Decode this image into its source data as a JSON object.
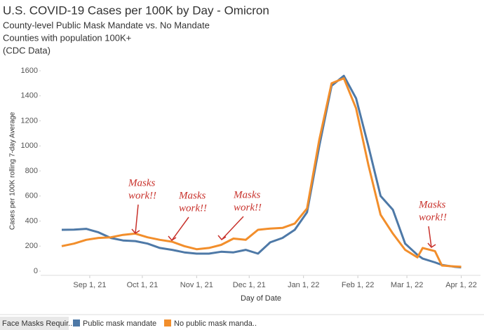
{
  "chart_data": {
    "type": "line",
    "title": "U.S. COVID-19 Cases per 100K by Day - Omicron",
    "subtitle": [
      "County-level Public Mask Mandate vs. No Mandate",
      "Counties with population 100K+",
      "(CDC Data)"
    ],
    "x_label": "Day of Date",
    "y_label": "Cases per 100K rolling 7-day Average",
    "x": [
      "2021-08-16",
      "2021-08-23",
      "2021-08-30",
      "2021-09-06",
      "2021-09-13",
      "2021-09-20",
      "2021-09-27",
      "2021-10-04",
      "2021-10-11",
      "2021-10-18",
      "2021-10-25",
      "2021-11-01",
      "2021-11-08",
      "2021-11-15",
      "2021-11-22",
      "2021-11-29",
      "2021-12-06",
      "2021-12-13",
      "2021-12-20",
      "2021-12-27",
      "2022-01-03",
      "2022-01-10",
      "2022-01-17",
      "2022-01-24",
      "2022-01-31",
      "2022-02-07",
      "2022-02-14",
      "2022-02-21",
      "2022-02-28",
      "2022-03-07",
      "2022-03-10",
      "2022-03-17",
      "2022-03-21",
      "2022-03-28",
      "2022-04-01"
    ],
    "series": [
      {
        "name": "Public mask mandate",
        "color": "#4e79a7",
        "values": [
          330,
          332,
          338,
          310,
          265,
          245,
          240,
          220,
          185,
          170,
          150,
          140,
          140,
          155,
          150,
          170,
          140,
          230,
          265,
          330,
          470,
          1000,
          1480,
          1560,
          1380,
          1000,
          600,
          490,
          220,
          130,
          100,
          70,
          50,
          35,
          30
        ]
      },
      {
        "name": "No public mask manda..",
        "color": "#f28e2b",
        "values": [
          200,
          220,
          250,
          265,
          270,
          290,
          300,
          270,
          250,
          235,
          200,
          175,
          185,
          210,
          260,
          250,
          330,
          340,
          345,
          380,
          500,
          1050,
          1500,
          1540,
          1300,
          850,
          450,
          300,
          170,
          110,
          185,
          160,
          45,
          38,
          35
        ]
      }
    ],
    "xlim": [
      "2021-08-04",
      "2022-04-12"
    ],
    "xticks": [
      {
        "value": "2021-09-01",
        "label": "Sep 1, 21"
      },
      {
        "value": "2021-10-01",
        "label": "Oct 1, 21"
      },
      {
        "value": "2021-11-01",
        "label": "Nov 1, 21"
      },
      {
        "value": "2021-12-01",
        "label": "Dec 1, 21"
      },
      {
        "value": "2022-01-01",
        "label": "Jan 1, 22"
      },
      {
        "value": "2022-02-01",
        "label": "Feb 1, 22"
      },
      {
        "value": "2022-03-01",
        "label": "Mar 1, 22"
      },
      {
        "value": "2022-04-01",
        "label": "Apr 1, 22"
      }
    ],
    "ylim": [
      0,
      1600
    ],
    "yticks": [
      0,
      200,
      400,
      600,
      800,
      1000,
      1200,
      1400,
      1600
    ],
    "grid": false,
    "legend_title": "Face Masks Requir...",
    "annotations": [
      [
        "Masks",
        "work!!"
      ],
      [
        "Masks",
        "work!!"
      ],
      [
        "Masks",
        "work!!"
      ],
      [
        "Masks",
        "work!!"
      ]
    ]
  }
}
